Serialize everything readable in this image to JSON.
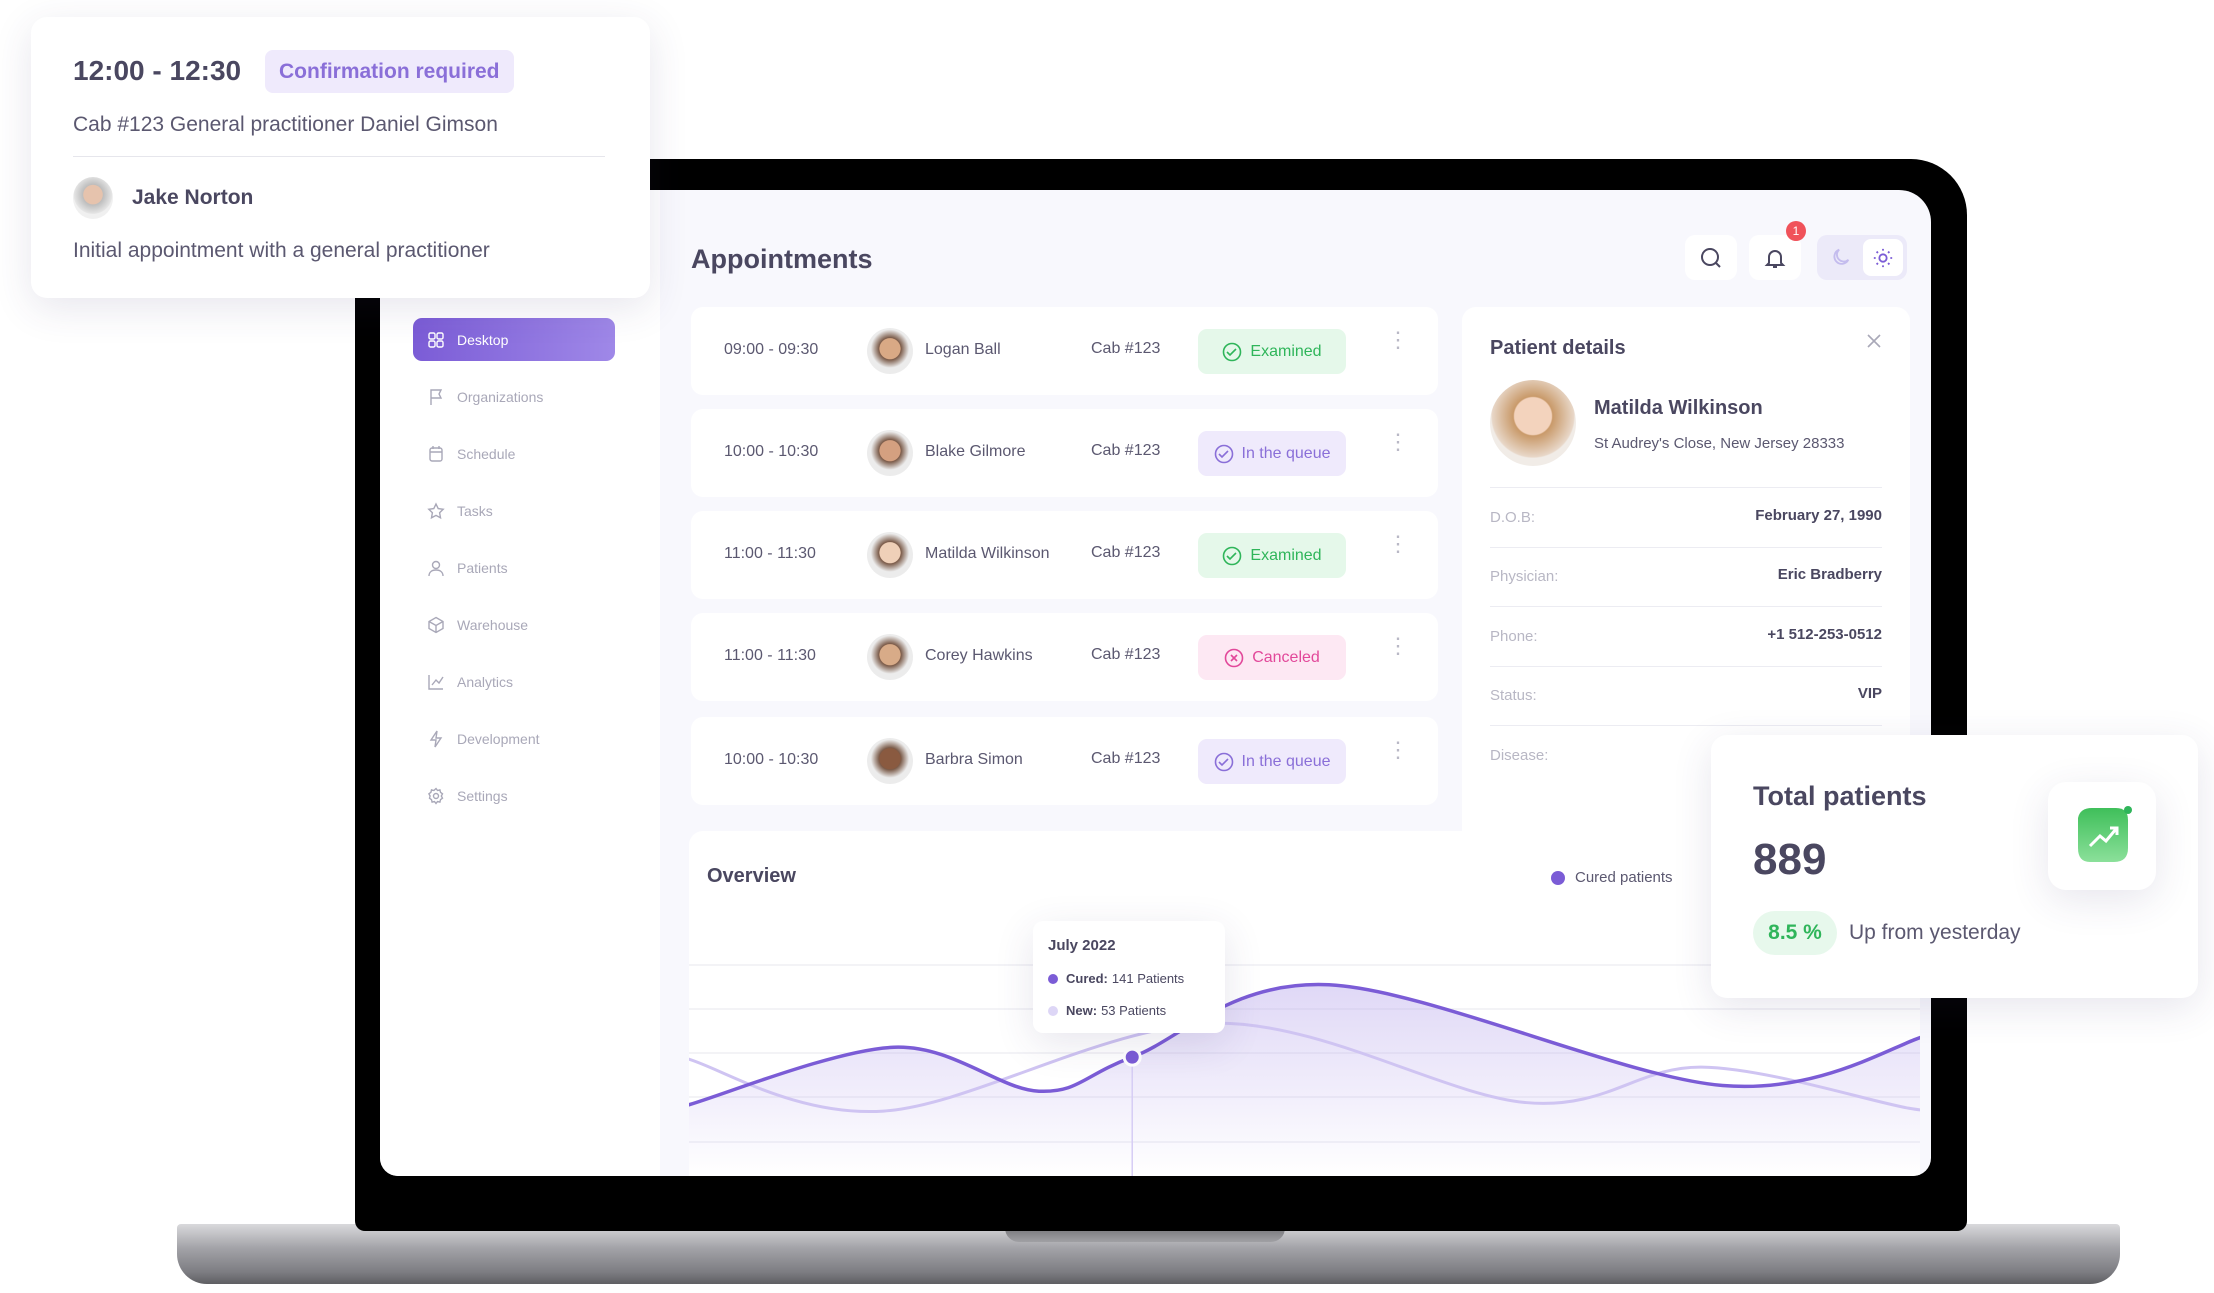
{
  "popup": {
    "time": "12:00 - 12:30",
    "status": "Confirmation required",
    "details": "Cab #123  General practitioner Daniel Gimson",
    "patient": "Jake Norton",
    "note": "Initial appointment with a general practitioner"
  },
  "sidebar": {
    "items": [
      {
        "label": "Desktop",
        "icon": "grid-icon",
        "active": true
      },
      {
        "label": "Organizations",
        "icon": "flag-icon"
      },
      {
        "label": "Schedule",
        "icon": "calendar-icon"
      },
      {
        "label": "Tasks",
        "icon": "star-icon"
      },
      {
        "label": "Patients",
        "icon": "user-icon"
      },
      {
        "label": "Warehouse",
        "icon": "box-icon"
      },
      {
        "label": "Analytics",
        "icon": "chart-icon"
      },
      {
        "label": "Development",
        "icon": "bolt-icon"
      },
      {
        "label": "Settings",
        "icon": "gear-icon"
      }
    ]
  },
  "header": {
    "title": "Appointments",
    "notification_count": "1",
    "theme": "light"
  },
  "appointments": [
    {
      "time": "09:00 - 09:30",
      "name": "Logan Ball",
      "cab": "Cab #123",
      "status": "Examined",
      "kind": "examined"
    },
    {
      "time": "10:00 - 10:30",
      "name": "Blake Gilmore",
      "cab": "Cab #123",
      "status": "In the queue",
      "kind": "queue"
    },
    {
      "time": "11:00 - 11:30",
      "name": "Matilda Wilkinson",
      "cab": "Cab #123",
      "status": "Examined",
      "kind": "examined"
    },
    {
      "time": "11:00 - 11:30",
      "name": "Corey Hawkins",
      "cab": "Cab #123",
      "status": "Canceled",
      "kind": "canceled"
    },
    {
      "time": "10:00 - 10:30",
      "name": "Barbra Simon",
      "cab": "Cab #123",
      "status": "In the queue",
      "kind": "queue"
    }
  ],
  "patient_details": {
    "title": "Patient details",
    "name": "Matilda Wilkinson",
    "address": "St Audrey's Close, New Jersey 28333",
    "fields": [
      {
        "label": "D.O.B:",
        "value": "February 27, 1990"
      },
      {
        "label": "Physician:",
        "value": "Eric Bradberry"
      },
      {
        "label": "Phone:",
        "value": "+1 512-253-0512"
      },
      {
        "label": "Status:",
        "value": "VIP"
      },
      {
        "label": "Disease:",
        "value": ""
      }
    ]
  },
  "overview": {
    "title": "Overview",
    "legend": "Cured patients",
    "tooltip": {
      "title": "July 2022",
      "cured": "Cured:",
      "cured_value": "141 Patients",
      "new": "New:",
      "new_value": "53 Patients"
    }
  },
  "total_patients": {
    "title": "Total patients",
    "value": "889",
    "change": "8.5 %",
    "change_label": "Up from yesterday"
  },
  "colors": {
    "accent": "#7b5cd6",
    "examined": "#2fb55a",
    "queue": "#8a6fd8",
    "canceled": "#e2489a",
    "secondary_line": "#cfc4f2"
  },
  "chart_data": {
    "type": "area",
    "series": [
      {
        "name": "Cured patients",
        "x": [
          0,
          2,
          3.4,
          4.3,
          6.2,
          10,
          12
        ],
        "y": [
          21,
          62,
          31,
          55,
          106,
          35,
          71
        ]
      },
      {
        "x": [
          0,
          1.9,
          5.1,
          8.1,
          9.8,
          11.8,
          12
        ],
        "y": [
          54,
          17,
          79,
          23,
          48,
          19,
          21
        ]
      }
    ],
    "highlight_x": 4.3
  }
}
